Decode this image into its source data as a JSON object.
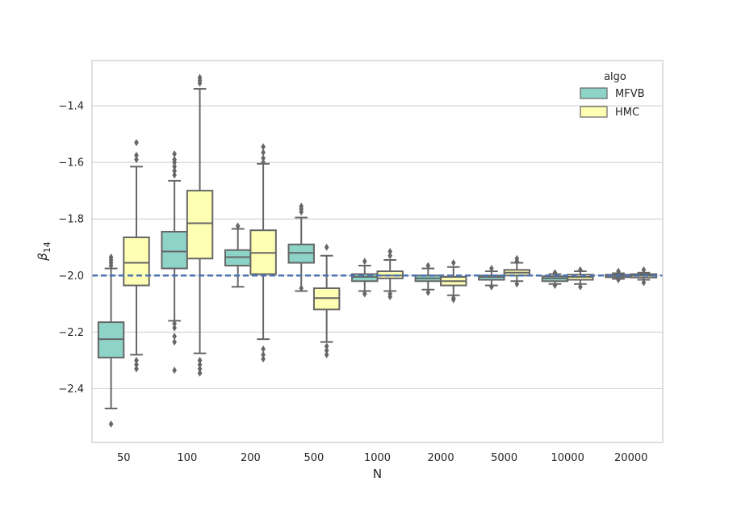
{
  "chart_data": {
    "type": "box",
    "title": "",
    "xlabel": "N",
    "ylabel_main": "β",
    "ylabel_sub": "14",
    "categories": [
      "50",
      "100",
      "200",
      "500",
      "1000",
      "2000",
      "5000",
      "10000",
      "20000"
    ],
    "y_ticks": [
      -1.4,
      -1.6,
      -1.8,
      -2.0,
      -2.2,
      -2.4
    ],
    "y_tick_labels": [
      "−1.4",
      "−1.6",
      "−1.8",
      "−2.0",
      "−2.2",
      "−2.4"
    ],
    "ylim": [
      -2.59,
      -1.24
    ],
    "reference_line": -2.0,
    "reference_color": "#4c72b0",
    "legend": {
      "title": "algo",
      "position": "top-right"
    },
    "series": [
      {
        "name": "MFVB",
        "color": "#8dd3c7",
        "boxes": [
          {
            "q1": -2.29,
            "median": -2.225,
            "q3": -2.165,
            "whisker_low": -2.47,
            "whisker_high": -1.975,
            "outliers": [
              -2.525,
              -1.935,
              -1.945,
              -1.955,
              -1.965
            ]
          },
          {
            "q1": -1.975,
            "median": -1.915,
            "q3": -1.845,
            "whisker_low": -2.16,
            "whisker_high": -1.665,
            "outliers": [
              -2.335,
              -2.235,
              -2.215,
              -2.185,
              -2.17,
              -1.57,
              -1.59,
              -1.6,
              -1.615,
              -1.63,
              -1.645
            ]
          },
          {
            "q1": -1.965,
            "median": -1.935,
            "q3": -1.91,
            "whisker_low": -2.04,
            "whisker_high": -1.835,
            "outliers": [
              -1.825
            ]
          },
          {
            "q1": -1.955,
            "median": -1.92,
            "q3": -1.89,
            "whisker_low": -2.055,
            "whisker_high": -1.795,
            "outliers": [
              -1.755,
              -1.765,
              -1.775,
              -2.045
            ]
          },
          {
            "q1": -2.02,
            "median": -2.005,
            "q3": -1.995,
            "whisker_low": -2.055,
            "whisker_high": -1.965,
            "outliers": [
              -1.95,
              -2.065
            ]
          },
          {
            "q1": -2.02,
            "median": -2.01,
            "q3": -2.0,
            "whisker_low": -2.05,
            "whisker_high": -1.975,
            "outliers": [
              -1.965,
              -2.06
            ]
          },
          {
            "q1": -2.015,
            "median": -2.005,
            "q3": -2.0,
            "whisker_low": -2.035,
            "whisker_high": -1.985,
            "outliers": [
              -1.975,
              -2.04
            ]
          },
          {
            "q1": -2.02,
            "median": -2.01,
            "q3": -2.003,
            "whisker_low": -2.03,
            "whisker_high": -1.995,
            "outliers": [
              -1.99,
              -2.035
            ]
          },
          {
            "q1": -2.006,
            "median": -2.0,
            "q3": -1.997,
            "whisker_low": -2.012,
            "whisker_high": -1.992,
            "outliers": [
              -1.985,
              -2.015
            ]
          }
        ]
      },
      {
        "name": "HMC",
        "color": "#ffffb3",
        "boxes": [
          {
            "q1": -2.035,
            "median": -1.955,
            "q3": -1.865,
            "whisker_low": -2.28,
            "whisker_high": -1.615,
            "outliers": [
              -2.3,
              -2.315,
              -2.33,
              -1.53,
              -1.575,
              -1.59
            ]
          },
          {
            "q1": -1.94,
            "median": -1.815,
            "q3": -1.7,
            "whisker_low": -2.275,
            "whisker_high": -1.34,
            "outliers": [
              -2.3,
              -2.315,
              -2.33,
              -2.345,
              -1.3,
              -1.31,
              -1.32
            ]
          },
          {
            "q1": -1.995,
            "median": -1.92,
            "q3": -1.84,
            "whisker_low": -2.225,
            "whisker_high": -1.605,
            "outliers": [
              -2.26,
              -2.28,
              -2.295,
              -1.545,
              -1.565,
              -1.585,
              -1.6
            ]
          },
          {
            "q1": -2.12,
            "median": -2.08,
            "q3": -2.045,
            "whisker_low": -2.235,
            "whisker_high": -1.93,
            "outliers": [
              -2.25,
              -2.265,
              -2.28,
              -1.9
            ]
          },
          {
            "q1": -2.01,
            "median": -2.0,
            "q3": -1.985,
            "whisker_low": -2.055,
            "whisker_high": -1.945,
            "outliers": [
              -1.915,
              -1.93,
              -2.065,
              -2.075
            ]
          },
          {
            "q1": -2.035,
            "median": -2.02,
            "q3": -2.005,
            "whisker_low": -2.07,
            "whisker_high": -1.97,
            "outliers": [
              -1.955,
              -2.08,
              -2.085
            ]
          },
          {
            "q1": -2.0,
            "median": -1.99,
            "q3": -1.98,
            "whisker_low": -2.02,
            "whisker_high": -1.955,
            "outliers": [
              -1.94,
              -1.95,
              -2.03
            ]
          },
          {
            "q1": -2.015,
            "median": -2.005,
            "q3": -1.997,
            "whisker_low": -2.03,
            "whisker_high": -1.985,
            "outliers": [
              -1.98,
              -2.04
            ]
          },
          {
            "q1": -2.007,
            "median": -2.0,
            "q3": -1.995,
            "whisker_low": -2.015,
            "whisker_high": -1.99,
            "outliers": [
              -1.98,
              -2.025
            ]
          }
        ]
      }
    ]
  }
}
